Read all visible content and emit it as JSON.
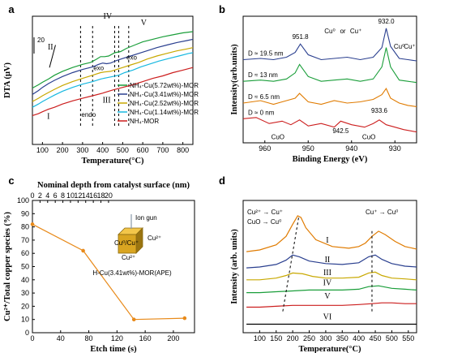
{
  "panels": {
    "a": "a",
    "b": "b",
    "c": "c",
    "d": "d"
  },
  "chart_data": [
    {
      "type": "line",
      "panel": "a",
      "xlabel": "Temperature(°C)",
      "ylabel": "DTA (μV)",
      "xlim": [
        50,
        850
      ],
      "xticks": [
        "100",
        "200",
        "300",
        "400",
        "500",
        "600",
        "700",
        "800"
      ],
      "scale_label": "20",
      "series": [
        {
          "name": "NH₄-Cu(5.72wt%)-MOR",
          "color": "#1a9e3a",
          "x": [
            50,
            80,
            100,
            130,
            160,
            200,
            250,
            300,
            340,
            370,
            390,
            410,
            430,
            460,
            490,
            520,
            560,
            600,
            650,
            700,
            750,
            800,
            850
          ],
          "y": [
            88,
            93,
            97,
            102,
            108,
            114,
            120,
            125,
            128,
            133,
            137,
            137,
            138,
            143,
            145,
            150,
            155,
            160,
            164,
            168,
            171,
            174,
            176
          ]
        },
        {
          "name": "NH₄-Cu(3.41wt%)-MOR",
          "color": "#2a3f8f",
          "x": [
            50,
            80,
            100,
            130,
            160,
            200,
            250,
            300,
            350,
            380,
            400,
            420,
            440,
            470,
            500,
            540,
            580,
            620,
            670,
            720,
            770,
            820,
            850
          ],
          "y": [
            78,
            84,
            89,
            95,
            100,
            106,
            112,
            117,
            121,
            125,
            127,
            126,
            127,
            131,
            134,
            138,
            142,
            146,
            151,
            155,
            159,
            162,
            164
          ]
        },
        {
          "name": "NH₄-Cu(2.52wt%)-MOR",
          "color": "#c8a800",
          "x": [
            50,
            80,
            100,
            130,
            160,
            200,
            250,
            300,
            350,
            390,
            410,
            440,
            470,
            500,
            540,
            580,
            620,
            670,
            720,
            770,
            820,
            850
          ],
          "y": [
            67,
            72,
            76,
            81,
            86,
            92,
            98,
            103,
            108,
            112,
            113,
            114,
            117,
            120,
            124,
            128,
            133,
            138,
            142,
            146,
            149,
            151
          ]
        },
        {
          "name": "NH₄-Cu(1.14wt%)-MOR",
          "color": "#17b8e0",
          "x": [
            50,
            80,
            100,
            130,
            160,
            200,
            250,
            300,
            350,
            390,
            420,
            450,
            480,
            510,
            550,
            590,
            630,
            680,
            730,
            780,
            830,
            850
          ],
          "y": [
            58,
            63,
            67,
            72,
            77,
            83,
            89,
            94,
            98,
            102,
            104,
            106,
            108,
            112,
            116,
            121,
            125,
            130,
            134,
            138,
            142,
            143
          ]
        },
        {
          "name": "NH₄-MOR",
          "color": "#cc1e1e",
          "x": [
            50,
            80,
            100,
            130,
            160,
            200,
            250,
            300,
            350,
            400,
            450,
            500,
            550,
            600,
            650,
            700,
            750,
            800,
            850
          ],
          "y": [
            45,
            48,
            51,
            55,
            58,
            63,
            68,
            72,
            76,
            80,
            85,
            89,
            93,
            98,
            103,
            107,
            112,
            116,
            120
          ]
        }
      ],
      "annotations": [
        "I",
        "II",
        "III",
        "IV",
        "V",
        "exo",
        "exo",
        "endo"
      ],
      "ylim": [
        0,
        200
      ]
    },
    {
      "type": "line",
      "panel": "b",
      "xlabel": "Binding Energy (eV)",
      "ylabel": "Intensity(arb.units)",
      "xlim": [
        965,
        925
      ],
      "xticks": [
        "960",
        "950",
        "940",
        "930"
      ],
      "series": [
        {
          "name": "D ≈ 19.5 nm",
          "color": "#2a3f8f",
          "x": [
            965,
            961,
            958,
            955,
            953,
            951.8,
            950,
            947,
            944,
            941,
            938,
            935,
            933,
            932,
            931,
            929,
            927,
            925
          ],
          "y": [
            84,
            85,
            84,
            86,
            90,
            97,
            88,
            84,
            85,
            86,
            84,
            86,
            94,
            110,
            95,
            85,
            84,
            83
          ]
        },
        {
          "name": "D ≈ 13 nm",
          "color": "#1a9e3a",
          "x": [
            965,
            961,
            958,
            955,
            953,
            952,
            950,
            947,
            944,
            941,
            938,
            935,
            933,
            932,
            931,
            929,
            927,
            925
          ],
          "y": [
            66,
            67,
            66,
            68,
            73,
            80,
            70,
            66,
            67,
            68,
            66,
            68,
            78,
            94,
            78,
            67,
            66,
            65
          ]
        },
        {
          "name": "D ≈ 6.5 nm",
          "color": "#e07b00",
          "x": [
            965,
            961,
            958,
            955,
            953,
            952,
            950,
            947,
            944,
            941,
            938,
            935,
            933,
            932,
            931,
            929,
            927,
            925
          ],
          "y": [
            48,
            50,
            47,
            50,
            52,
            56,
            49,
            47,
            50,
            48,
            49,
            51,
            55,
            60,
            52,
            48,
            46,
            45
          ]
        },
        {
          "name": "D ≈ 0 nm",
          "color": "#cc1e1e",
          "x": [
            965,
            962,
            959,
            956,
            954,
            952,
            950,
            947,
            944,
            942.5,
            940,
            937,
            935,
            933.6,
            932,
            930,
            928,
            925
          ],
          "y": [
            35,
            36,
            31,
            33,
            30,
            34,
            29,
            31,
            28,
            33,
            30,
            28,
            31,
            34,
            30,
            28,
            26,
            24
          ]
        }
      ],
      "annotations": [
        "951.8",
        "932.0",
        "942.5",
        "933.6",
        "CuO",
        "CuO",
        "Cu⁰",
        "or",
        "Cu⁺"
      ],
      "ylim": [
        15,
        120
      ]
    },
    {
      "type": "line",
      "panel": "c",
      "xlabel": "Etch time (s)",
      "ylabel": "Cu²⁺/Total copper species (%)",
      "top_xlabel": "Nominal depth from catalyst surface (nm)",
      "xlim": [
        0,
        230
      ],
      "ylim": [
        0,
        100
      ],
      "xticks": [
        "0",
        "40",
        "80",
        "120",
        "160",
        "200"
      ],
      "top_xticks": [
        "0",
        "2",
        "4",
        "6",
        "8",
        "10",
        "12",
        "14",
        "16",
        "18",
        "20"
      ],
      "yticks": [
        "0",
        "10",
        "20",
        "30",
        "40",
        "50",
        "60",
        "70",
        "80",
        "90",
        "100"
      ],
      "series": [
        {
          "name": "",
          "color": "#e88a1a",
          "x": [
            0,
            72,
            144,
            216
          ],
          "y": [
            82,
            62,
            10,
            11
          ]
        }
      ],
      "inset": {
        "ion_gun": "Ion gun",
        "caption": "H-Cu(3.41wt%)-MOR(APE)",
        "cu2": "Cu²⁺",
        "cu_mixed": "Cu⁰/Cu⁺"
      }
    },
    {
      "type": "line",
      "panel": "d",
      "xlabel": "Temperature(°C)",
      "ylabel": "Intensity (arb. units)",
      "xlim": [
        50,
        575
      ],
      "xticks": [
        "100",
        "150",
        "200",
        "250",
        "300",
        "350",
        "400",
        "450",
        "500",
        "550"
      ],
      "series": [
        {
          "name": "I",
          "color": "#e07b00",
          "x": [
            60,
            100,
            150,
            180,
            200,
            215,
            225,
            240,
            270,
            320,
            370,
            400,
            420,
            440,
            460,
            480,
            510,
            540,
            575
          ],
          "y": [
            110,
            112,
            118,
            128,
            142,
            152,
            150,
            138,
            124,
            116,
            114,
            116,
            120,
            128,
            134,
            130,
            122,
            116,
            113
          ]
        },
        {
          "name": "II",
          "color": "#2a3f8f",
          "x": [
            60,
            100,
            150,
            180,
            200,
            220,
            250,
            300,
            350,
            400,
            430,
            450,
            470,
            500,
            540,
            575
          ],
          "y": [
            91,
            92,
            95,
            100,
            106,
            104,
            99,
            96,
            95,
            97,
            104,
            106,
            101,
            96,
            93,
            92
          ]
        },
        {
          "name": "III",
          "color": "#c8a800",
          "x": [
            60,
            100,
            150,
            180,
            200,
            230,
            260,
            300,
            350,
            400,
            430,
            450,
            470,
            500,
            540,
            575
          ],
          "y": [
            77,
            77,
            79,
            82,
            85,
            84,
            81,
            79,
            79,
            80,
            85,
            86,
            82,
            79,
            78,
            77
          ]
        },
        {
          "name": "IV",
          "color": "#1a9e3a",
          "x": [
            60,
            100,
            150,
            200,
            250,
            300,
            350,
            400,
            430,
            460,
            500,
            540,
            575
          ],
          "y": [
            62,
            62,
            63,
            64,
            65,
            65,
            65,
            66,
            69,
            70,
            67,
            66,
            65
          ]
        },
        {
          "name": "V",
          "color": "#cc1e1e",
          "x": [
            60,
            100,
            150,
            200,
            250,
            300,
            350,
            400,
            440,
            470,
            500,
            540,
            575
          ],
          "y": [
            45,
            45,
            46,
            47,
            47,
            47,
            47,
            48,
            49,
            50,
            50,
            49,
            49
          ]
        },
        {
          "name": "VI",
          "color": "#000000",
          "x": [
            60,
            100,
            150,
            200,
            250,
            300,
            350,
            400,
            450,
            500,
            575
          ],
          "y": [
            25,
            25,
            25,
            25,
            25,
            25,
            25,
            25,
            25,
            25,
            25
          ]
        }
      ],
      "annotations": [
        "Cu²⁺ → Cu⁺",
        "CuO → Cu⁰",
        "Cu⁺ → Cu⁰"
      ],
      "ylim": [
        15,
        170
      ]
    }
  ]
}
